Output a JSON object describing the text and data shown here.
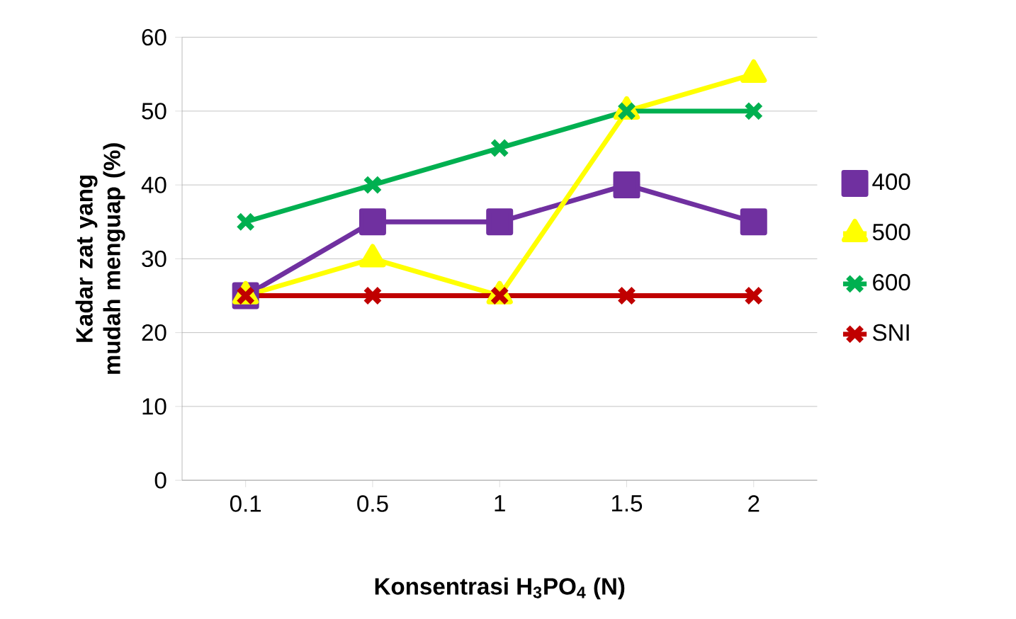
{
  "chart_data": {
    "type": "line",
    "xlabel": "Konsentrasi H$_{3}$PO$_{4}$ (N)",
    "ylabel": "Kadar zat yang mudah menguap (%)",
    "categories": [
      "0.1",
      "0.5",
      "1",
      "1.5",
      "2"
    ],
    "series": [
      {
        "name": "400",
        "color": "#7030a0",
        "marker": "square",
        "values": [
          25,
          35,
          35,
          40,
          35
        ]
      },
      {
        "name": "500",
        "color": "#ffff00",
        "marker": "triangle",
        "values": [
          25,
          30,
          25,
          50,
          55
        ]
      },
      {
        "name": "600",
        "color": "#00b050",
        "marker": "cross",
        "values": [
          35,
          40,
          45,
          50,
          50
        ]
      },
      {
        "name": "SNI",
        "color": "#c00000",
        "marker": "cross",
        "values": [
          25,
          25,
          25,
          25,
          25
        ]
      }
    ],
    "ylim": [
      0,
      60
    ],
    "yticks": [
      0,
      10,
      20,
      30,
      40,
      50,
      60
    ],
    "grid": "y",
    "legend": "right"
  }
}
